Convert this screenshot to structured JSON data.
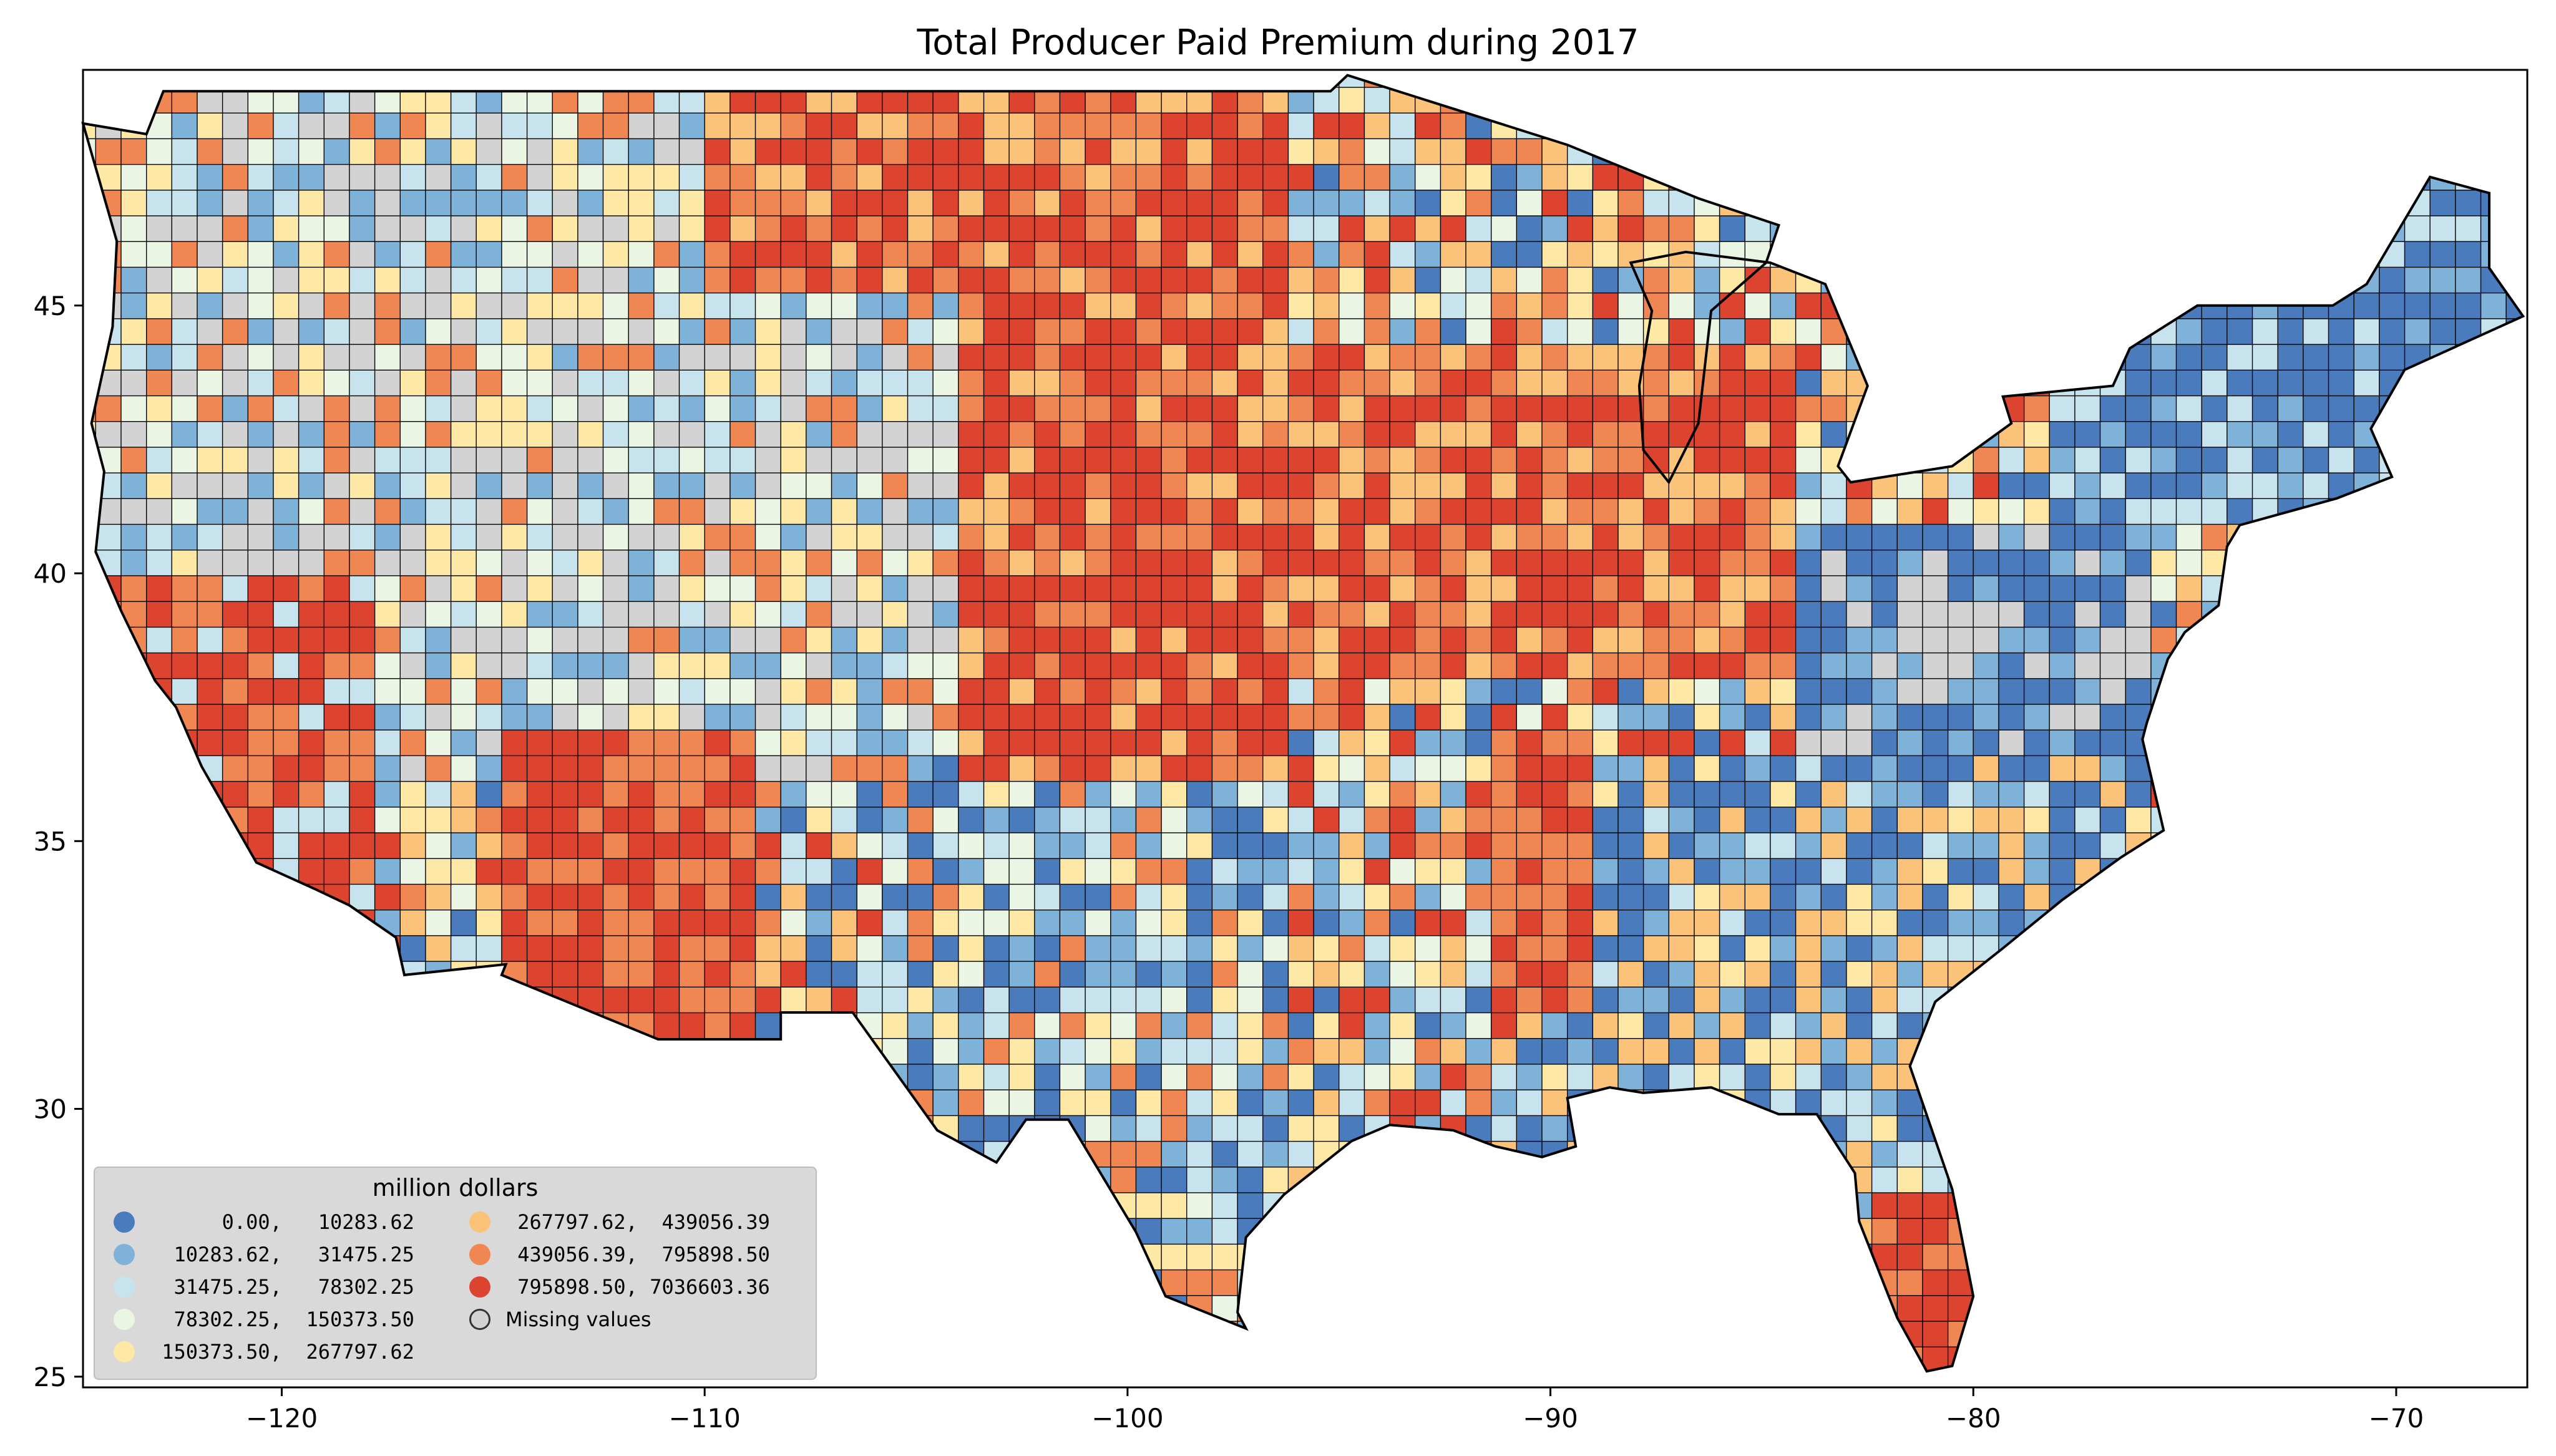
{
  "map": {
    "title": "Total Producer Paid Premium during 2017",
    "x_ticks": [
      {
        "value": -120,
        "label": "−120"
      },
      {
        "value": -110,
        "label": "−110"
      },
      {
        "value": -100,
        "label": "−100"
      },
      {
        "value": -90,
        "label": "−90"
      },
      {
        "value": -80,
        "label": "−80"
      },
      {
        "value": -70,
        "label": "−70"
      }
    ],
    "y_ticks": [
      {
        "value": 45,
        "label": "45"
      },
      {
        "value": 40,
        "label": "40"
      },
      {
        "value": 35,
        "label": "35"
      },
      {
        "value": 30,
        "label": "30"
      },
      {
        "value": 25,
        "label": "25"
      }
    ],
    "lon_range": [
      -124.7,
      -66.9
    ],
    "lat_range": [
      24.8,
      49.4
    ],
    "legend": {
      "title": "million dollars",
      "classes": [
        {
          "label": "      0.00,   10283.62",
          "color": "#4a7bbd"
        },
        {
          "label": "  10283.62,   31475.25",
          "color": "#7fb2d8"
        },
        {
          "label": "  31475.25,   78302.25",
          "color": "#c6e3ee"
        },
        {
          "label": "  78302.25,  150373.50",
          "color": "#eaf5e3"
        },
        {
          "label": " 150373.50,  267797.62",
          "color": "#fde9a5"
        },
        {
          "label": " 267797.62,  439056.39",
          "color": "#fbc27a"
        },
        {
          "label": " 439056.39,  795898.50",
          "color": "#f08752"
        },
        {
          "label": " 795898.50, 7036603.36",
          "color": "#dc4430"
        },
        {
          "label": "Missing values",
          "color": "#d3d3d3"
        }
      ]
    }
  }
}
